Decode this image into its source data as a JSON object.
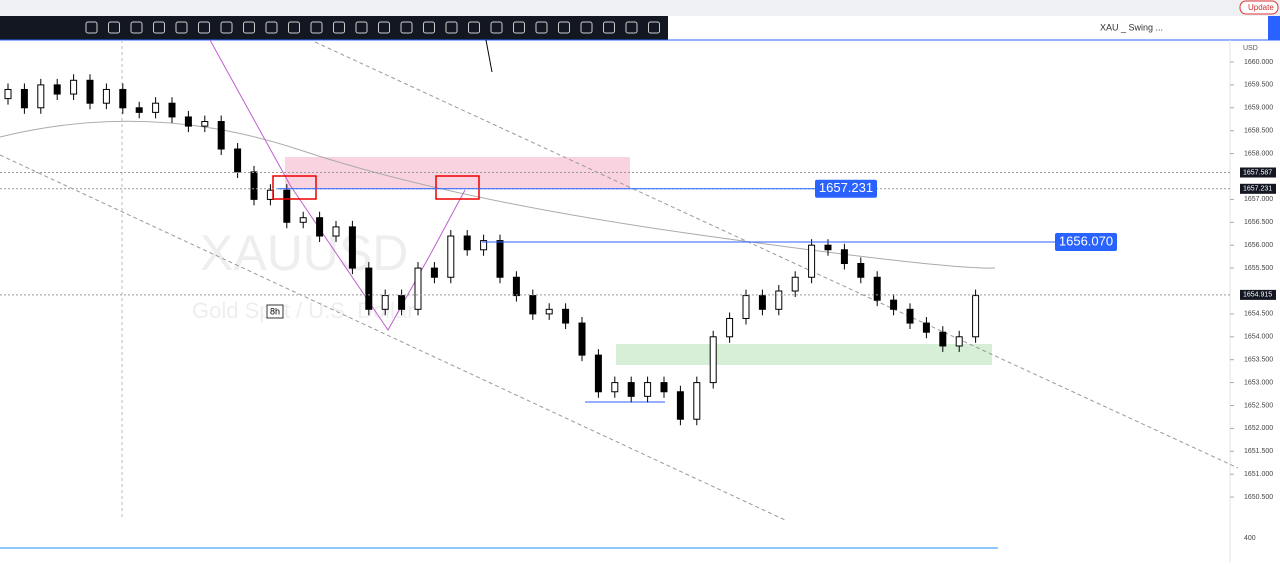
{
  "browser": {
    "update": "Update"
  },
  "toolbar": {
    "symbol": "XAU _ Swing ...",
    "currency": "USD"
  },
  "watermark": {
    "symbol": "XAUUSD",
    "description": "Gold Spot / U.S. Dollar"
  },
  "interval_marker": "8h",
  "price_axis": {
    "ylim": [
      1650.0,
      1660.48
    ],
    "yticks": [
      {
        "value": 1660,
        "label": "1660.000"
      },
      {
        "value": 1659.5,
        "label": "1659.500"
      },
      {
        "value": 1659,
        "label": "1659.000"
      },
      {
        "value": 1658.5,
        "label": "1658.500"
      },
      {
        "value": 1658,
        "label": "1658.000"
      },
      {
        "value": 1657,
        "label": "1657.000"
      },
      {
        "value": 1656.5,
        "label": "1656.500"
      },
      {
        "value": 1656,
        "label": "1656.000"
      },
      {
        "value": 1655.5,
        "label": "1655.500"
      },
      {
        "value": 1654.5,
        "label": "1654.500"
      },
      {
        "value": 1654,
        "label": "1654.000"
      },
      {
        "value": 1653.5,
        "label": "1653.500"
      },
      {
        "value": 1653,
        "label": "1653.000"
      },
      {
        "value": 1652.5,
        "label": "1652.500"
      },
      {
        "value": 1652,
        "label": "1652.000"
      },
      {
        "value": 1651.5,
        "label": "1651.500"
      },
      {
        "value": 1651,
        "label": "1651.000"
      },
      {
        "value": 1650.5,
        "label": "1650.500"
      }
    ],
    "badges": [
      {
        "value": 1657.587,
        "label": "1657.587"
      },
      {
        "value": 1657.231,
        "label": "1657.231"
      },
      {
        "value": 1654.915,
        "label": "1654.915"
      }
    ]
  },
  "price_labels": [
    {
      "value": 1657.231,
      "label": "1657.231"
    },
    {
      "value": 1656.07,
      "label": "1656.070"
    }
  ],
  "volume_axis": {
    "ticks": [
      400
    ]
  },
  "closes": [
    1659.2,
    1659.4,
    1659.0,
    1659.5,
    1659.3,
    1659.6,
    1659.1,
    1659.4,
    1659.0,
    1658.9,
    1659.1,
    1658.8,
    1658.6,
    1658.7,
    1658.1,
    1657.6,
    1657.0,
    1657.2,
    1656.5,
    1656.6,
    1656.2,
    1656.4,
    1655.5,
    1654.6,
    1654.9,
    1654.6,
    1655.5,
    1655.3,
    1656.2,
    1655.9,
    1656.1,
    1655.3,
    1654.9,
    1654.5,
    1654.6,
    1654.3,
    1653.6,
    1652.8,
    1653.0,
    1652.7,
    1653.0,
    1652.8,
    1652.2,
    1653.0,
    1654.0,
    1654.4,
    1654.9,
    1654.6,
    1655.0,
    1655.3,
    1656.0,
    1655.9,
    1655.6,
    1655.3,
    1654.8,
    1654.6,
    1654.3,
    1654.1,
    1653.8,
    1654.0,
    1654.9
  ]
}
